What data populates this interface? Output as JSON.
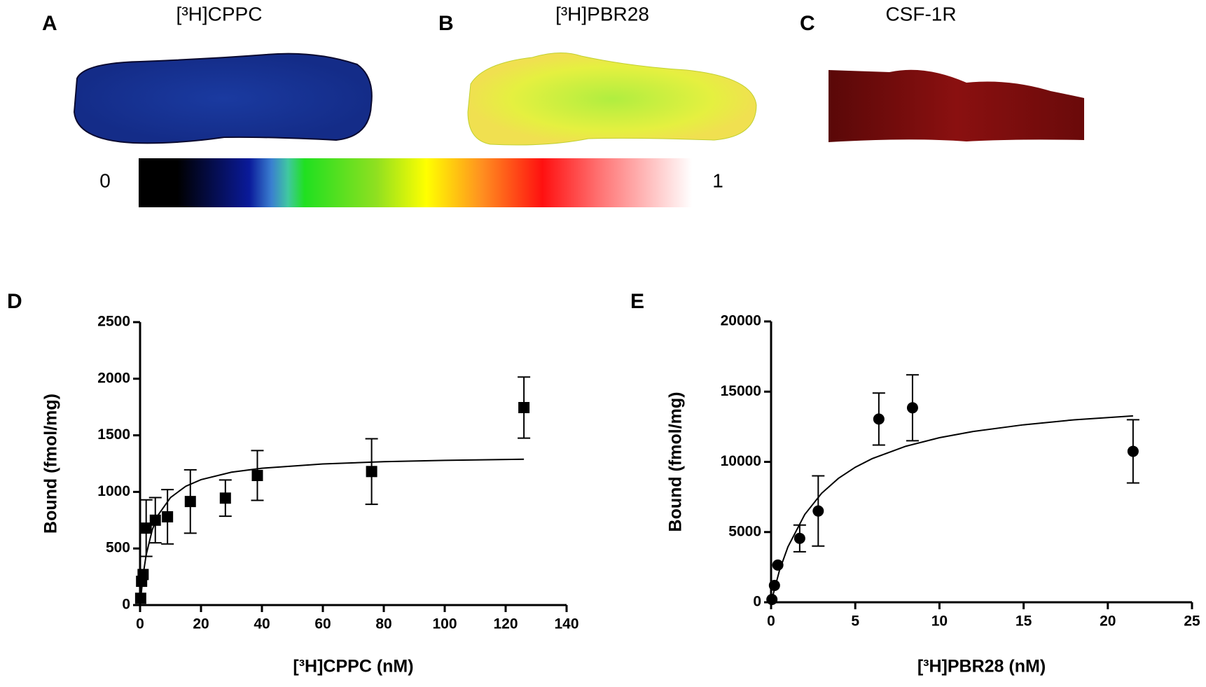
{
  "panels": {
    "a": {
      "label": "A",
      "title": "[³H]CPPC"
    },
    "b": {
      "label": "B",
      "title": "[³H]PBR28"
    },
    "c": {
      "label": "C",
      "title": "CSF-1R"
    },
    "colorbar": {
      "min_label": "0",
      "max_label": "1"
    }
  },
  "chart_data": [
    {
      "type": "scatter",
      "label": "D",
      "xlabel": "[³H]CPPC (nM)",
      "ylabel": "Bound (fmol/mg)",
      "marker": "square",
      "color": "#000000",
      "x": [
        0.2,
        0.5,
        1,
        2,
        5,
        9,
        16.5,
        28,
        38.5,
        76,
        126
      ],
      "values": [
        60,
        210,
        270,
        680,
        750,
        780,
        915,
        945,
        1145,
        1180,
        1745
      ],
      "errors": [
        null,
        null,
        null,
        250,
        200,
        240,
        280,
        160,
        220,
        290,
        270
      ],
      "fit": {
        "x": [
          0,
          1,
          2,
          4,
          6,
          10,
          15,
          20,
          30,
          40,
          60,
          80,
          100,
          126
        ],
        "values": [
          0,
          266,
          443,
          665,
          798,
          950,
          1050,
          1108,
          1174,
          1209,
          1247,
          1267,
          1279,
          1289
        ]
      },
      "xlim": [
        0,
        140
      ],
      "ylim": [
        0,
        2500
      ],
      "xticks": [
        0,
        20,
        40,
        60,
        80,
        100,
        120,
        140
      ],
      "yticks": [
        0,
        500,
        1000,
        1500,
        2000,
        2500
      ]
    },
    {
      "type": "scatter",
      "label": "E",
      "xlabel": "[³H]PBR28 (nM)",
      "ylabel": "Bound (fmol/mg)",
      "marker": "circle",
      "color": "#000000",
      "x": [
        0.05,
        0.2,
        0.4,
        1.7,
        2.8,
        6.4,
        8.4,
        21.5
      ],
      "values": [
        200,
        1200,
        2650,
        4550,
        6500,
        13050,
        13850,
        10750
      ],
      "errors": [
        null,
        null,
        null,
        950,
        2500,
        1850,
        2350,
        2250
      ],
      "fit": {
        "x": [
          0,
          0.5,
          1,
          2,
          3,
          4,
          5,
          6,
          8,
          10,
          12,
          15,
          18,
          21.5
        ],
        "values": [
          0,
          2273,
          3947,
          6250,
          7759,
          8824,
          9615,
          10227,
          11111,
          11719,
          12162,
          12640,
          12994,
          13272
        ]
      },
      "xlim": [
        0,
        25
      ],
      "ylim": [
        0,
        20000
      ],
      "xticks": [
        0,
        5,
        10,
        15,
        20,
        25
      ],
      "yticks": [
        0,
        5000,
        10000,
        15000,
        20000
      ]
    }
  ]
}
